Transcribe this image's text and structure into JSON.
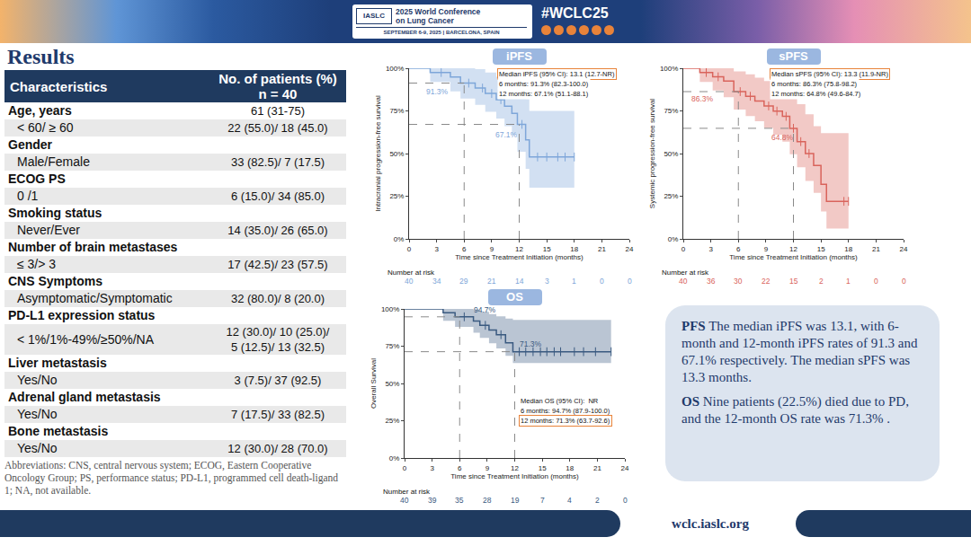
{
  "header": {
    "org": "IASLC",
    "conference": [
      "2025 World Conference",
      "on Lung Cancer"
    ],
    "dates": "SEPTEMBER 6-9, 2025 | BARCELONA, SPAIN",
    "hashtag": "#WCLC25"
  },
  "results_title": "Results",
  "table": {
    "header": [
      "Characteristics",
      [
        "No. of patients (%)",
        "n = 40"
      ]
    ],
    "rows": [
      {
        "heading": "Age, years",
        "value": "61 (31-75)"
      },
      {
        "label": "< 60/ ≥ 60",
        "value": "22 (55.0)/ 18 (45.0)"
      },
      {
        "heading": "Gender"
      },
      {
        "label": "Male/Female",
        "value": "33 (82.5)/ 7 (17.5)"
      },
      {
        "heading": "ECOG PS"
      },
      {
        "label": "0 /1",
        "value": "6 (15.0)/ 34 (85.0)"
      },
      {
        "heading": "Smoking status"
      },
      {
        "label": "Never/Ever",
        "value": "14 (35.0)/ 26 (65.0)"
      },
      {
        "heading": "Number of brain metastases"
      },
      {
        "label": "≤ 3/> 3",
        "value": "17 (42.5)/ 23 (57.5)"
      },
      {
        "heading": "CNS Symptoms"
      },
      {
        "label": "Asymptomatic/Symptomatic",
        "value": "32 (80.0)/ 8 (20.0)"
      },
      {
        "heading": "PD-L1 expression status"
      },
      {
        "label": "< 1%/1%-49%/≥50%/NA",
        "value": [
          "12 (30.0)/ 10 (25.0)/",
          "5 (12.5)/ 13 (32.5)"
        ]
      },
      {
        "heading": "Liver metastasis"
      },
      {
        "label": "Yes/No",
        "value": "3 (7.5)/ 37 (92.5)"
      },
      {
        "heading": "Adrenal gland metastasis"
      },
      {
        "label": "Yes/No",
        "value": "7 (17.5)/ 33 (82.5)"
      },
      {
        "heading": "Bone metastasis"
      },
      {
        "label": "Yes/No",
        "value": "12 (30.0)/ 28 (70.0)"
      }
    ],
    "footnote": "Abbreviations: CNS, central nervous system; ECOG, Eastern Cooperative Oncology Group; PS, performance status; PD-L1, programmed cell death-ligand 1; NA, not available."
  },
  "chart_data": [
    {
      "type": "line",
      "title": "iPFS",
      "xlabel": "Time since Treatment Initiation (months)",
      "ylabel": "Intracranial progression-free survival",
      "xlim": [
        0,
        24
      ],
      "xticks": [
        0,
        3,
        6,
        9,
        12,
        15,
        18,
        21,
        24
      ],
      "ylim": [
        0,
        100
      ],
      "yticks": [
        {
          "value": 0,
          "label": "0%"
        },
        {
          "value": 25,
          "label": "25%"
        },
        {
          "value": 50,
          "label": "50%"
        },
        {
          "value": 75,
          "label": "75%"
        },
        {
          "value": 100,
          "label": "100%"
        }
      ],
      "grid": false,
      "line_style": "step",
      "marker": "tick",
      "color": "#7ea6d9",
      "x": [
        0,
        2.3,
        4.5,
        5.6,
        7.2,
        8.3,
        9.5,
        10.4,
        11.2,
        11.8,
        12.7,
        13.1,
        18
      ],
      "values": [
        100,
        97.5,
        94.9,
        91.3,
        88.4,
        85.2,
        81.6,
        77.8,
        73.6,
        67.1,
        58.0,
        48.0,
        48.0
      ],
      "ci_lower": [
        100,
        92.0,
        86.5,
        82.3,
        78.5,
        74.5,
        70.5,
        66.0,
        61.0,
        51.1,
        41.0,
        30.0,
        30.0
      ],
      "ci_upper": [
        100,
        100,
        100,
        100,
        99.5,
        97.5,
        95.0,
        92.0,
        89.5,
        88.1,
        82.0,
        75.0,
        75.0
      ],
      "censored": {
        "x": [
          3.5,
          6.5,
          8.0,
          9.0,
          10.0,
          12.3,
          14.0,
          15.0,
          16.2,
          17.0,
          18.0
        ],
        "values": [
          97.5,
          91.3,
          88.4,
          85.2,
          81.6,
          67.1,
          48.0,
          48.0,
          48.0,
          48.0,
          48.0
        ]
      },
      "landmarks": [
        {
          "x": 6,
          "y": 91.3,
          "label": "91.3%"
        },
        {
          "x": 12,
          "y": 67.1,
          "label": "67.1%"
        }
      ],
      "info_box": [
        {
          "text": "Median iPFS (95% CI): 13.1 (12.7-NR)",
          "color": "#e8833a"
        },
        {
          "text": "6 months: 91.3% (82.3-100.0)"
        },
        {
          "text": "12 months: 67.1% (51.1-88.1)"
        }
      ],
      "at_risk": {
        "title": "Number at risk",
        "x": [
          0,
          3,
          6,
          9,
          12,
          15,
          18,
          21,
          24
        ],
        "counts": [
          40,
          34,
          29,
          21,
          14,
          3,
          1,
          0,
          0
        ]
      }
    },
    {
      "type": "line",
      "title": "sPFS",
      "xlabel": "Time since Treatment Initiation (months)",
      "ylabel": "Systemic progression-free survival",
      "xlim": [
        0,
        24
      ],
      "xticks": [
        0,
        3,
        6,
        9,
        12,
        15,
        18,
        21,
        24
      ],
      "ylim": [
        0,
        100
      ],
      "yticks": [
        {
          "value": 0,
          "label": "0%"
        },
        {
          "value": 25,
          "label": "25%"
        },
        {
          "value": 50,
          "label": "50%"
        },
        {
          "value": 75,
          "label": "75%"
        },
        {
          "value": 100,
          "label": "100%"
        }
      ],
      "grid": false,
      "line_style": "step",
      "marker": "tick",
      "color": "#d9645c",
      "x": [
        0,
        1.8,
        3.2,
        4.4,
        5.5,
        6.8,
        7.8,
        8.8,
        9.8,
        10.8,
        11.6,
        12.4,
        13.3,
        14.2,
        15.0,
        15.6,
        18
      ],
      "values": [
        100,
        97.5,
        95.0,
        92.5,
        86.3,
        83.6,
        80.8,
        77.9,
        74.9,
        71.8,
        64.8,
        57.0,
        50.0,
        43.0,
        32.0,
        22.0,
        22.0
      ],
      "ci_lower": [
        100,
        92.0,
        87.0,
        83.0,
        75.8,
        72.0,
        69.0,
        65.0,
        61.0,
        57.0,
        49.6,
        42.0,
        34.0,
        27.0,
        16.0,
        6.0,
        6.0
      ],
      "ci_upper": [
        100,
        100,
        100,
        100,
        98.2,
        96.5,
        94.5,
        92.5,
        90.0,
        88.0,
        84.7,
        79.0,
        73.0,
        66.0,
        62.0,
        62.0,
        62.0
      ],
      "censored": {
        "x": [
          2.5,
          3.8,
          6.2,
          7.3,
          9.3,
          10.2,
          11.2,
          12.0,
          12.8,
          13.7,
          17.5,
          18.0
        ],
        "values": [
          97.5,
          95.0,
          86.3,
          83.6,
          77.9,
          74.9,
          71.8,
          64.8,
          57.0,
          50.0,
          22.0,
          22.0
        ]
      },
      "landmarks": [
        {
          "x": 6,
          "y": 86.3,
          "label": "86.3%"
        },
        {
          "x": 12,
          "y": 64.8,
          "label": "64.8%"
        }
      ],
      "info_box": [
        {
          "text": "Median sPFS (95% CI): 13.3 (11.9-NR)",
          "color": "#e8833a"
        },
        {
          "text": "6 months: 86.3% (75.8-98.2)"
        },
        {
          "text": "12 months: 64.8% (49.6-84.7)"
        }
      ],
      "at_risk": {
        "title": "Number at risk",
        "x": [
          0,
          3,
          6,
          9,
          12,
          15,
          18,
          21,
          24
        ],
        "counts": [
          40,
          36,
          30,
          22,
          15,
          2,
          1,
          0,
          0
        ]
      }
    },
    {
      "type": "line",
      "title": "OS",
      "xlabel": "Time since Treatment Initiation (months)",
      "ylabel": "Overall Survival",
      "xlim": [
        0,
        24
      ],
      "xticks": [
        0,
        3,
        6,
        9,
        12,
        15,
        18,
        21,
        24
      ],
      "ylim": [
        0,
        100
      ],
      "yticks": [
        {
          "value": 0,
          "label": "0%"
        },
        {
          "value": 25,
          "label": "25%"
        },
        {
          "value": 50,
          "label": "50%"
        },
        {
          "value": 75,
          "label": "75%"
        },
        {
          "value": 100,
          "label": "100%"
        }
      ],
      "grid": false,
      "line_style": "step",
      "marker": "tick",
      "color": "#3a5a80",
      "x": [
        0,
        4.2,
        5.5,
        7.5,
        8.2,
        9.2,
        10.0,
        11.0,
        11.8,
        22.5
      ],
      "values": [
        100,
        97.4,
        94.7,
        91.9,
        89.0,
        85.9,
        82.7,
        77.3,
        71.3,
        71.3
      ],
      "ci_lower": [
        100,
        92.0,
        87.9,
        84.0,
        80.5,
        77.0,
        73.5,
        68.5,
        63.7,
        63.7
      ],
      "ci_upper": [
        100,
        100,
        100,
        99.5,
        98.0,
        96.5,
        95.0,
        93.5,
        92.6,
        92.6
      ],
      "censored": {
        "x": [
          6.5,
          8.8,
          10.5,
          12.5,
          13.2,
          14.0,
          14.8,
          15.5,
          16.3,
          17.0,
          18.5,
          19.5,
          20.8,
          22.5
        ],
        "values": [
          94.7,
          89.0,
          82.7,
          71.3,
          71.3,
          71.3,
          71.3,
          71.3,
          71.3,
          71.3,
          71.3,
          71.3,
          71.3,
          71.3
        ]
      },
      "landmarks": [
        {
          "x": 6,
          "y": 94.7,
          "label": "94.7%"
        },
        {
          "x": 12,
          "y": 71.3,
          "label": "71.3%"
        }
      ],
      "info_box": [
        {
          "text": "Median OS (95% CI):  NR"
        },
        {
          "text": "6 months: 94.7% (87.9-100.0)"
        },
        {
          "text": "12 months: 71.3% (63.7-92.6)",
          "color": "#e8833a"
        }
      ],
      "at_risk": {
        "title": "Number at risk",
        "x": [
          0,
          3,
          6,
          9,
          12,
          15,
          18,
          21,
          24
        ],
        "counts": [
          40,
          39,
          35,
          28,
          19,
          7,
          4,
          2,
          0
        ]
      }
    }
  ],
  "summary": [
    {
      "lead": "PFS",
      "text": "The median iPFS was 13.1, with 6-month and 12-month iPFS rates of 91.3 and 67.1% respectively. The median sPFS was 13.3 months."
    },
    {
      "lead": "OS",
      "text": "Nine patients (22.5%) died due to PD, and the 12-month OS rate was 71.3% ."
    }
  ],
  "footer": "wclc.iaslc.org"
}
